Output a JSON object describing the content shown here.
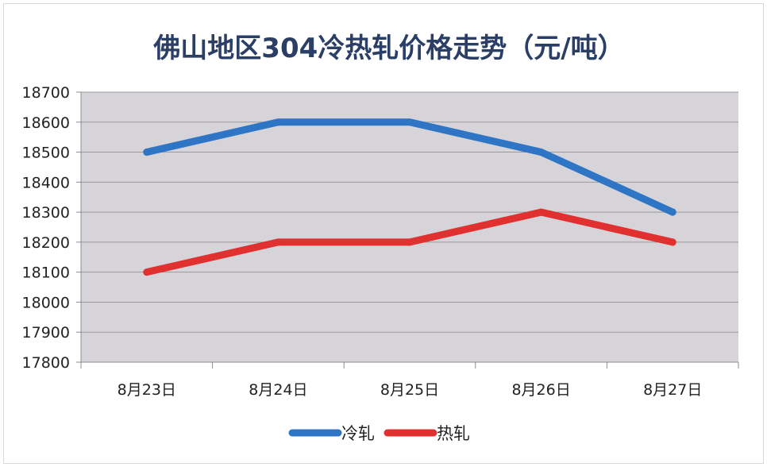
{
  "chart_data": {
    "type": "line",
    "title": "佛山地区304冷热轧价格走势（元/吨）",
    "categories": [
      "8月23日",
      "8月24日",
      "8月25日",
      "8月26日",
      "8月27日"
    ],
    "series": [
      {
        "name": "冷轧",
        "values": [
          18500,
          18600,
          18600,
          18500,
          18300
        ],
        "color": "#2e75c6"
      },
      {
        "name": "热轧",
        "values": [
          18100,
          18200,
          18200,
          18300,
          18200
        ],
        "color": "#e03030"
      }
    ],
    "ylim": [
      17800,
      18700
    ],
    "yticks": [
      17800,
      17900,
      18000,
      18100,
      18200,
      18300,
      18400,
      18500,
      18600,
      18700
    ],
    "grid": true,
    "legend": "bottom",
    "plot_background": "#d6d4d8"
  }
}
